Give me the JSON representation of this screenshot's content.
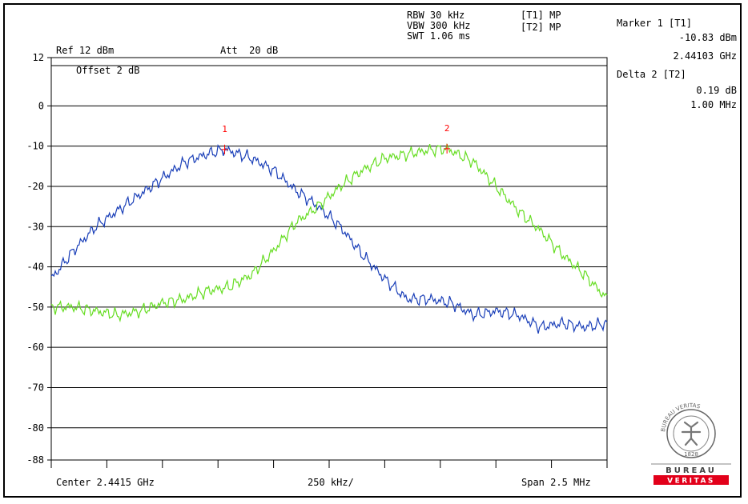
{
  "header": {
    "rbw": "RBW 30 kHz",
    "vbw": "VBW 300 kHz",
    "swt": "SWT 1.06 ms",
    "trace1": "[T1] MP",
    "trace2": "[T2] MP",
    "ref": "Ref 12 dBm",
    "att": "Att  20 dB",
    "offset": "Offset 2 dB"
  },
  "markers_panel": {
    "m1_title": "Marker 1 [T1]",
    "m1_level": "-10.83 dBm",
    "m1_freq": "2.44103 GHz",
    "d2_title": "Delta 2 [T2]",
    "d2_level": "0.19 dB",
    "d2_freq": "1.00 MHz"
  },
  "footer": {
    "center": "Center 2.4415 GHz",
    "div": "250 kHz/",
    "span": "Span 2.5 MHz"
  },
  "logo": {
    "arc_text": "BUREAU VERITAS",
    "year": "1828",
    "band_top": "BUREAU",
    "band_bottom": "VERITAS"
  },
  "colors": {
    "trace1": "#1a3fb8",
    "trace2": "#66dd22",
    "marker": "#ff0000",
    "logo_red": "#e2001a",
    "grid": "#000000"
  },
  "chart_data": {
    "type": "line",
    "xlabel": "",
    "ylabel": "",
    "xlim": [
      2.44025,
      2.44275
    ],
    "ylim": [
      -88,
      12
    ],
    "y_ticks": [
      12,
      0,
      -10,
      -20,
      -30,
      -40,
      -50,
      -60,
      -70,
      -80,
      -88
    ],
    "y_tick_labels": [
      "12",
      "0",
      "-10",
      "-20",
      "-30",
      "-40",
      "-50",
      "-60",
      "-70",
      "-80",
      "-88"
    ],
    "grid": true,
    "series": [
      {
        "name": "T1",
        "x": [
          2.44025,
          2.44035,
          2.44045,
          2.44055,
          2.44065,
          2.44075,
          2.44085,
          2.44095,
          2.44103,
          2.44115,
          2.44125,
          2.44135,
          2.44145,
          2.44155,
          2.44165,
          2.44175,
          2.44185,
          2.44195,
          2.44205,
          2.44215,
          2.44225,
          2.44235,
          2.44245,
          2.44255,
          2.44265,
          2.44275
        ],
        "y": [
          -43,
          -36,
          -30,
          -26,
          -22,
          -18,
          -14,
          -12,
          -10.83,
          -13,
          -16,
          -21,
          -25,
          -30,
          -37,
          -43,
          -48,
          -48,
          -49,
          -52,
          -51,
          -52,
          -55,
          -54,
          -55,
          -54
        ]
      },
      {
        "name": "T2",
        "x": [
          2.44025,
          2.44035,
          2.44045,
          2.44055,
          2.44065,
          2.44075,
          2.44085,
          2.44095,
          2.44105,
          2.44115,
          2.44125,
          2.44135,
          2.44145,
          2.44155,
          2.44165,
          2.44175,
          2.44185,
          2.44195,
          2.44203,
          2.44215,
          2.44225,
          2.44235,
          2.44245,
          2.44255,
          2.44265,
          2.44275
        ],
        "y": [
          -50,
          -50,
          -51,
          -52,
          -51,
          -49,
          -48,
          -46,
          -45,
          -42,
          -36,
          -29,
          -25,
          -20,
          -16,
          -13,
          -12,
          -11,
          -10.64,
          -14,
          -20,
          -26,
          -31,
          -37,
          -42,
          -48
        ]
      }
    ],
    "markers": [
      {
        "label": "1",
        "x": 2.44103,
        "y": -10.83,
        "trace": "T1"
      },
      {
        "label": "2",
        "x": 2.44203,
        "y": -10.64,
        "trace": "T2"
      }
    ]
  }
}
